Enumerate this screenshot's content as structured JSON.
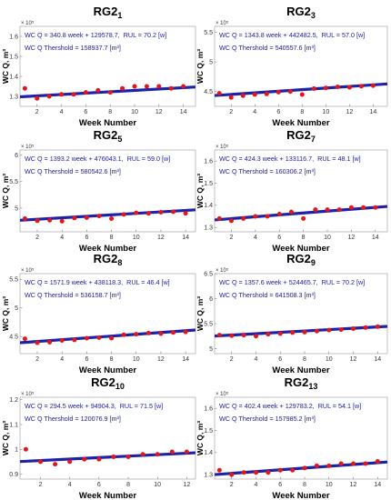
{
  "colors": {
    "fit_line": "#1f22a8",
    "points": "#e0181b",
    "annotation_text": "#1a1aa6"
  },
  "chart_data": [
    {
      "type": "scatter",
      "title": "RG2",
      "title_sub": "1",
      "equation": "WC Q = 340.8 week + 129578.7,",
      "rul": "RUL = 70.2 [w]",
      "threshold": "WC Q Thershold = 158937.7 [m³]",
      "xlabel": "Week Number",
      "ylabel": "WC Q, m³",
      "multiplier": "× 10⁵",
      "xlim": [
        0.6,
        15
      ],
      "ylim": [
        1.25,
        1.65
      ],
      "xticks": [
        2,
        4,
        6,
        8,
        10,
        12,
        14
      ],
      "yticks": [
        1.3,
        1.4,
        1.5,
        1.6
      ],
      "fit": {
        "slope": 0.003408,
        "intercept": 1.295787
      },
      "x": [
        1,
        2,
        3,
        4,
        5,
        6,
        7,
        8,
        9,
        10,
        11,
        12,
        13,
        14
      ],
      "y": [
        1.34,
        1.29,
        1.3,
        1.31,
        1.31,
        1.32,
        1.33,
        1.32,
        1.34,
        1.35,
        1.35,
        1.35,
        1.34,
        1.35
      ]
    },
    {
      "type": "scatter",
      "title": "RG2",
      "title_sub": "3",
      "equation": "WC Q = 1343.8 week + 442482.5,",
      "rul": "RUL = 57.0 [w]",
      "threshold": "WC Q Thershold = 540557.6 [m³]",
      "xlabel": "Week Number",
      "ylabel": "WC Q, m³",
      "multiplier": "× 10⁵",
      "xlim": [
        0.6,
        15.2
      ],
      "ylim": [
        4.25,
        5.6
      ],
      "xticks": [
        2,
        4,
        6,
        8,
        10,
        12,
        14
      ],
      "yticks": [
        4.5,
        5,
        5.5
      ],
      "fit": {
        "slope": 0.013438,
        "intercept": 4.424825
      },
      "x": [
        1,
        2,
        3,
        4,
        5,
        6,
        7,
        8,
        9,
        10,
        11,
        12,
        13,
        14
      ],
      "y": [
        4.47,
        4.4,
        4.43,
        4.45,
        4.46,
        4.49,
        4.5,
        4.45,
        4.55,
        4.56,
        4.58,
        4.57,
        4.59,
        4.6
      ]
    },
    {
      "type": "scatter",
      "title": "RG2",
      "title_sub": "5",
      "equation": "WC Q = 1393.2 week + 476043.1,",
      "rul": "RUL = 59.0 [w]",
      "threshold": "WC Q Thershold = 580542.6 [m³]",
      "xlabel": "Week Number",
      "ylabel": "WC Q, m³",
      "multiplier": "× 10⁵",
      "xlim": [
        0.6,
        14.8
      ],
      "ylim": [
        4.55,
        6.1
      ],
      "xticks": [
        2,
        4,
        6,
        8,
        10,
        12,
        14
      ],
      "yticks": [
        5,
        5.5,
        6
      ],
      "fit": {
        "slope": 0.013932,
        "intercept": 4.760431
      },
      "x": [
        1,
        2,
        3,
        4,
        5,
        6,
        7,
        8,
        9,
        10,
        11,
        12,
        13,
        14
      ],
      "y": [
        4.8,
        4.76,
        4.77,
        4.75,
        4.81,
        4.82,
        4.85,
        4.8,
        4.88,
        4.91,
        4.9,
        4.92,
        4.93,
        4.9
      ]
    },
    {
      "type": "scatter",
      "title": "RG2",
      "title_sub": "7",
      "equation": "WC Q = 424.3 week + 133116.7,",
      "rul": "RUL = 48.1 [w]",
      "threshold": "WC Q Thershold = 160306.2 [m³]",
      "xlabel": "Week Number",
      "ylabel": "WC Q, m³",
      "multiplier": "× 10⁵",
      "xlim": [
        0.6,
        15
      ],
      "ylim": [
        1.28,
        1.65
      ],
      "xticks": [
        2,
        4,
        6,
        8,
        10,
        12,
        14
      ],
      "yticks": [
        1.3,
        1.4,
        1.5,
        1.6
      ],
      "fit": {
        "slope": 0.004243,
        "intercept": 1.331167
      },
      "x": [
        1,
        2,
        3,
        4,
        5,
        6,
        7,
        8,
        9,
        10,
        11,
        12,
        13,
        14
      ],
      "y": [
        1.34,
        1.33,
        1.34,
        1.35,
        1.35,
        1.36,
        1.37,
        1.34,
        1.38,
        1.38,
        1.38,
        1.39,
        1.39,
        1.39
      ]
    },
    {
      "type": "scatter",
      "title": "RG2",
      "title_sub": "8",
      "equation": "WC Q = 1571.9 week + 438118.3,",
      "rul": "RUL = 46.4 [w]",
      "threshold": "WC Q Thershold = 536158.7 [m³]",
      "xlabel": "Week Number",
      "ylabel": "WC Q, m³",
      "multiplier": "× 10⁵",
      "xlim": [
        0.6,
        14.8
      ],
      "ylim": [
        4.2,
        5.6
      ],
      "xticks": [
        2,
        4,
        6,
        8,
        10,
        12,
        14
      ],
      "yticks": [
        4.5,
        5,
        5.5
      ],
      "fit": {
        "slope": 0.015719,
        "intercept": 4.381183
      },
      "x": [
        1,
        2,
        3,
        4,
        5,
        6,
        7,
        8,
        9,
        10,
        11,
        12,
        13,
        14
      ],
      "y": [
        4.46,
        4.39,
        4.4,
        4.43,
        4.44,
        4.47,
        4.48,
        4.47,
        4.53,
        4.54,
        4.56,
        4.55,
        4.57,
        4.58
      ]
    },
    {
      "type": "scatter",
      "title": "RG2",
      "title_sub": "9",
      "equation": "WC Q = 1357.6 week + 524465.7,",
      "rul": "RUL = 70.2 [w]",
      "threshold": "WC Q Thershold = 641508.3 [m³]",
      "xlabel": "Week Number",
      "ylabel": "WC Q, m³",
      "multiplier": "× 10⁵",
      "xlim": [
        0.6,
        14.8
      ],
      "ylim": [
        4.9,
        6.5
      ],
      "xticks": [
        2,
        4,
        6,
        8,
        10,
        12,
        14
      ],
      "yticks": [
        5,
        5.5,
        6,
        6.5
      ],
      "fit": {
        "slope": 0.013576,
        "intercept": 5.244657
      },
      "x": [
        1,
        2,
        3,
        4,
        5,
        6,
        7,
        8,
        9,
        10,
        11,
        12,
        13,
        14
      ],
      "y": [
        5.27,
        5.26,
        5.27,
        5.25,
        5.29,
        5.3,
        5.32,
        5.33,
        5.35,
        5.37,
        5.38,
        5.4,
        5.42,
        5.44
      ]
    },
    {
      "type": "scatter",
      "title": "RG2",
      "title_sub": "10",
      "equation": "WC Q = 294.5 week + 94904.3,",
      "rul": "RUL = 71.5 [w]",
      "threshold": "WC Q Thershold = 120076.9 [m³]",
      "xlabel": "Week Number",
      "ylabel": "WC Q, m³",
      "multiplier": "× 10⁵",
      "xlim": [
        0.6,
        12.6
      ],
      "ylim": [
        0.88,
        1.21
      ],
      "xticks": [
        2,
        4,
        6,
        8,
        10,
        12
      ],
      "yticks": [
        0.9,
        1,
        1.1,
        1.2
      ],
      "fit": {
        "slope": 0.002945,
        "intercept": 0.949043
      },
      "x": [
        1,
        2,
        3,
        4,
        5,
        6,
        7,
        8,
        9,
        10,
        11,
        12
      ],
      "y": [
        1.0,
        0.95,
        0.94,
        0.95,
        0.96,
        0.96,
        0.97,
        0.97,
        0.98,
        0.98,
        0.99,
        0.99
      ]
    },
    {
      "type": "scatter",
      "title": "RG2",
      "title_sub": "13",
      "equation": "WC Q = 402.4 week + 129783.2,",
      "rul": "RUL = 54.1 [w]",
      "threshold": "WC Q Thershold = 157985.2 [m³]",
      "xlabel": "Week Number",
      "ylabel": "WC Q, m³",
      "multiplier": "× 10⁵",
      "xlim": [
        0.6,
        14.8
      ],
      "ylim": [
        1.28,
        1.65
      ],
      "xticks": [
        2,
        4,
        6,
        8,
        10,
        12,
        14
      ],
      "yticks": [
        1.3,
        1.4,
        1.5,
        1.6
      ],
      "fit": {
        "slope": 0.004024,
        "intercept": 1.297832
      },
      "x": [
        1,
        2,
        3,
        4,
        5,
        6,
        7,
        8,
        9,
        10,
        11,
        12,
        13,
        14
      ],
      "y": [
        1.32,
        1.3,
        1.31,
        1.31,
        1.31,
        1.32,
        1.32,
        1.33,
        1.34,
        1.34,
        1.35,
        1.35,
        1.35,
        1.36
      ]
    }
  ]
}
